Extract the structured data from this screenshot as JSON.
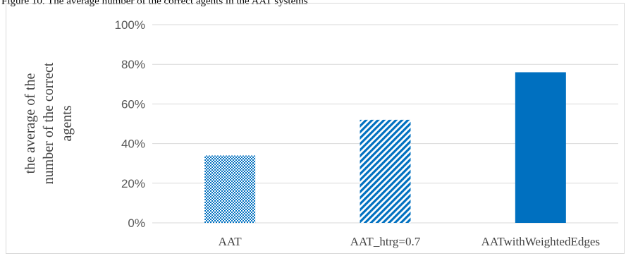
{
  "caption_fragment": "Figure 10. The average number of the correct agents in the AAT systems",
  "colors": {
    "bar": "#0070c0",
    "grid": "#d9d9d9",
    "text": "#595959"
  },
  "chart_data": {
    "type": "bar",
    "title": "",
    "xlabel": "",
    "ylabel": [
      "the average of  the",
      "number of the correct",
      "agents"
    ],
    "categories": [
      "AAT",
      "AAT_htrg=0.7",
      "AATwithWeightedEdges"
    ],
    "values": [
      0.34,
      0.52,
      0.76
    ],
    "patterns": [
      "dotted",
      "diagonal-stripes",
      "solid"
    ],
    "ylim": [
      0,
      1
    ],
    "yticks": [
      0,
      0.2,
      0.4,
      0.6,
      0.8,
      1.0
    ],
    "ytick_labels": [
      "0%",
      "20%",
      "40%",
      "60%",
      "80%",
      "100%"
    ],
    "grid": true,
    "legend": "none"
  }
}
